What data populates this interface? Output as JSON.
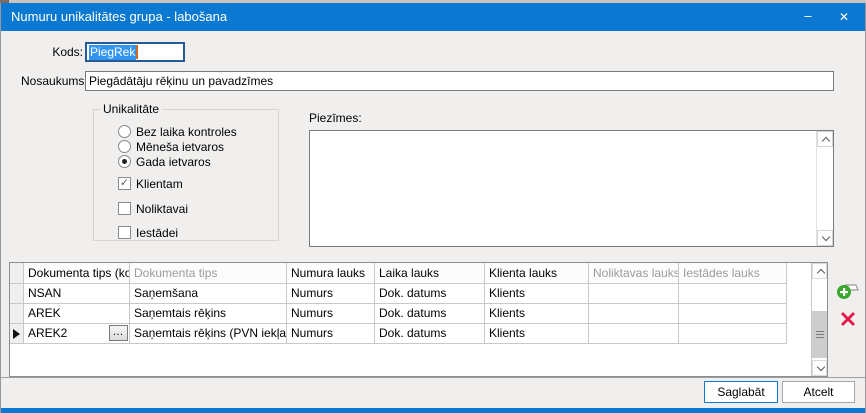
{
  "colors": {
    "accent": "#0b79d1",
    "selection": "#3296f1",
    "add_green": "#3da52e",
    "delete_red": "#e3174c"
  },
  "window": {
    "title": "Numuru unikalitātes grupa - labošana",
    "minimize_glyph": "–",
    "close_glyph": "✕"
  },
  "form": {
    "kods_label": "Kods:",
    "kods_value": "PiegRek",
    "nosaukums_label": "Nosaukums:",
    "nosaukums_value": "Piegādātāju rēķinu un pavadzīmes",
    "unikalitate": {
      "legend": "Unikalitāte",
      "radios": [
        {
          "label": "Bez laika kontroles",
          "checked": false
        },
        {
          "label": "Mēneša ietvaros",
          "checked": false
        },
        {
          "label": "Gada ietvaros",
          "checked": true
        }
      ],
      "checkboxes": [
        {
          "label": "Klientam",
          "checked": true
        },
        {
          "label": "Noliktavai",
          "checked": false
        },
        {
          "label": "Iestādei",
          "checked": false
        }
      ]
    },
    "piezimes_label": "Piezīmes:",
    "piezimes_value": ""
  },
  "table": {
    "columns": [
      {
        "label": "Dokumenta tips (ko...",
        "muted": false
      },
      {
        "label": "Dokumenta tips",
        "muted": true
      },
      {
        "label": "Numura lauks",
        "muted": false
      },
      {
        "label": "Laika lauks",
        "muted": false
      },
      {
        "label": "Klienta lauks",
        "muted": false
      },
      {
        "label": "Noliktavas lauks",
        "muted": true
      },
      {
        "label": "Iestādes lauks",
        "muted": true
      }
    ],
    "rows": [
      {
        "active": false,
        "cells": [
          "NSAN",
          "Saņemšana",
          "Numurs",
          "Dok. datums",
          "Klients",
          "",
          ""
        ]
      },
      {
        "active": false,
        "cells": [
          "AREK",
          "Saņemtais rēķins",
          "Numurs",
          "Dok. datums",
          "Klients",
          "",
          ""
        ]
      },
      {
        "active": true,
        "cells": [
          "AREK2",
          "Saņemtais rēķins (PVN iekļauts)",
          "Numurs",
          "Dok. datums",
          "Klients",
          "",
          ""
        ]
      }
    ],
    "ellipsis_label": "…"
  },
  "icons": {
    "check_glyph": "✓"
  },
  "footer": {
    "save_label": "Saglabāt",
    "cancel_label": "Atcelt"
  }
}
